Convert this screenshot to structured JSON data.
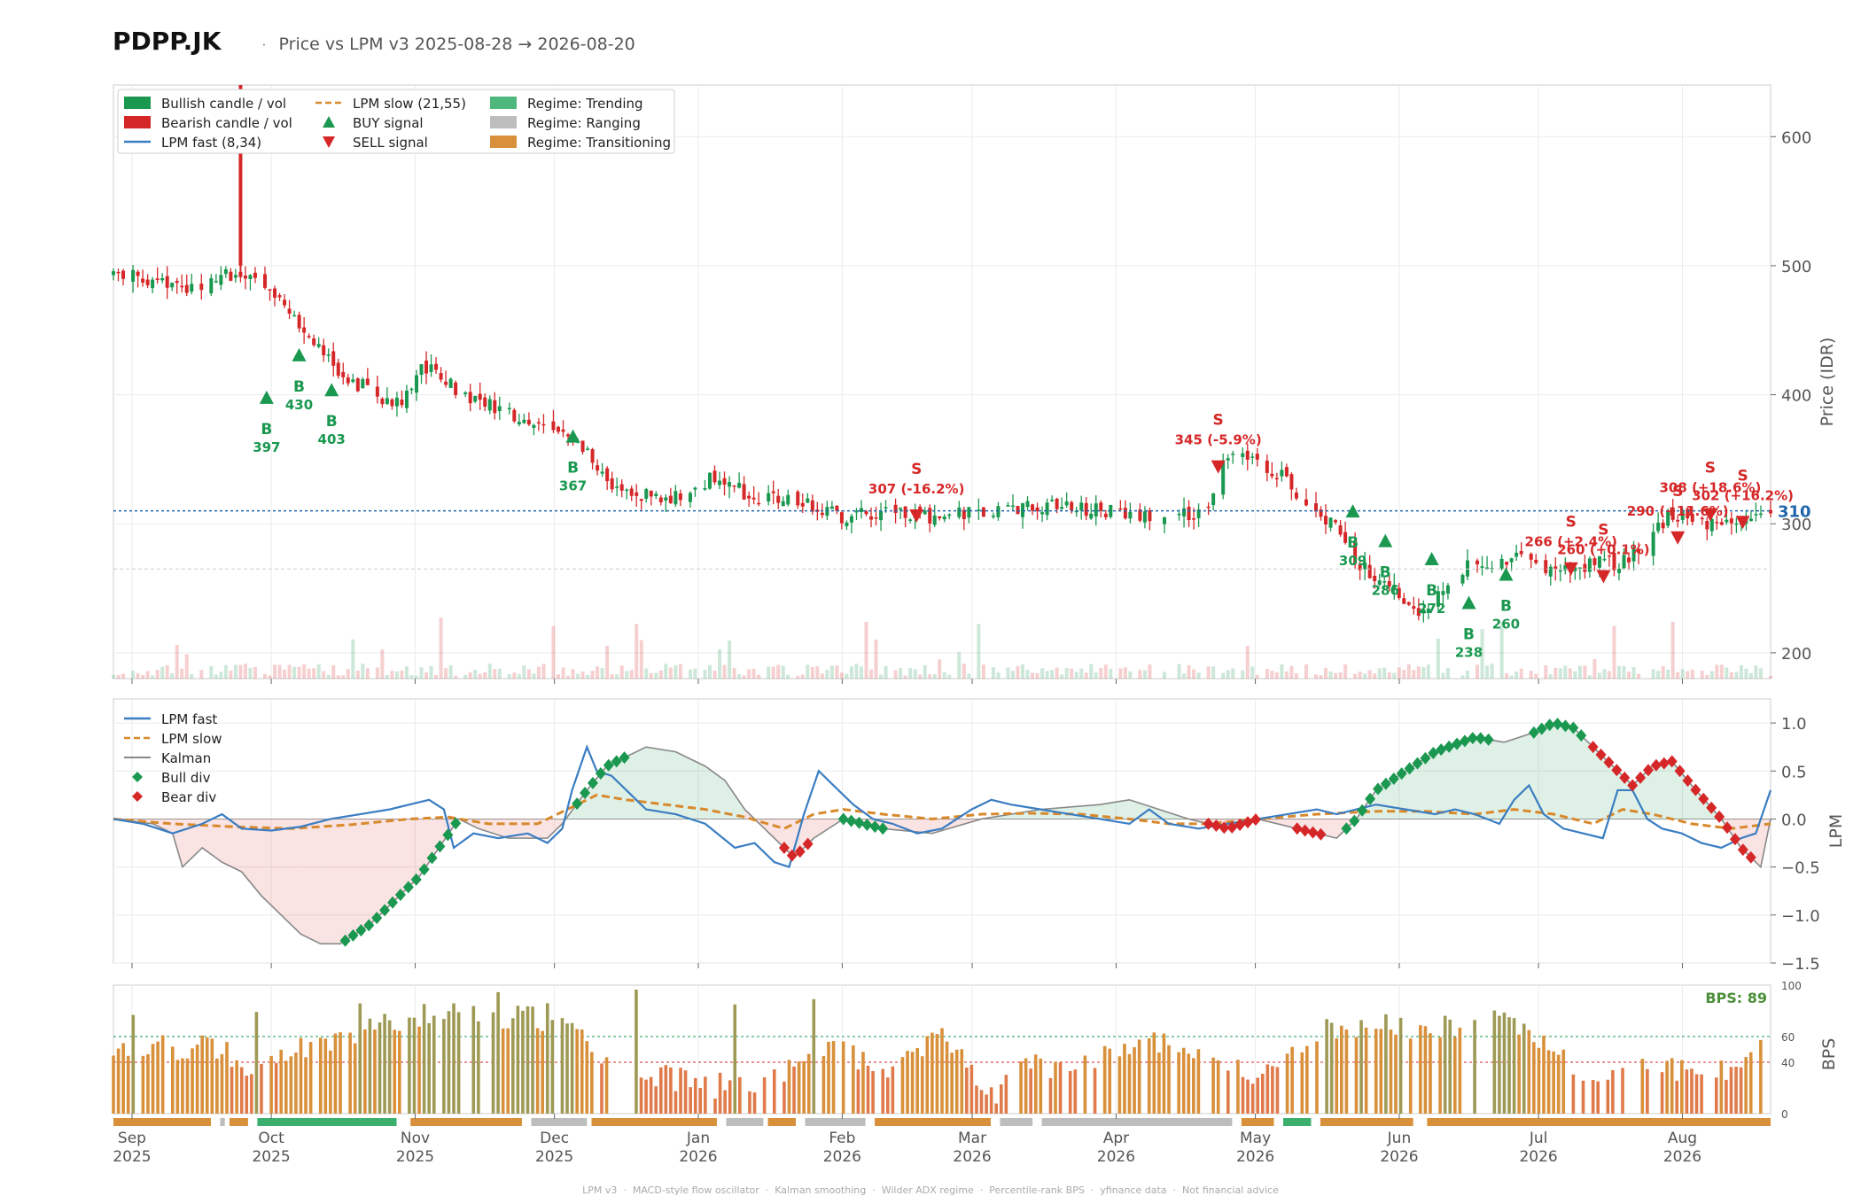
{
  "header": {
    "ticker": "PDPP.JK",
    "separator": "·",
    "subtitle": "Price vs LPM v3  2025-08-28 → 2026-08-20"
  },
  "footer": {
    "text": "LPM v3  ·  MACD-style flow oscillator  ·  Kalman smoothing  ·  Wilder ADX regime  ·  Percentile-rank BPS  ·  yfinance data  ·  Not financial advice"
  },
  "colors": {
    "bull": "#1a9850",
    "bear": "#d62728",
    "lpm_fast": "#3a7dc2",
    "lpm_slow": "#d8892c",
    "kalman": "#888888",
    "trending": "#3aaf6e",
    "ranging": "#bdbdbd",
    "transitioning": "#d8903b",
    "last_price": "#2166ac"
  },
  "chart_data": [
    {
      "panel": "price",
      "type": "candlestick",
      "ylabel": "Price (IDR)",
      "ylim": [
        180,
        640
      ],
      "yticks": [
        200,
        300,
        400,
        500,
        600
      ],
      "date_range": [
        "2025-08-28",
        "2026-08-20"
      ],
      "last_price": "310",
      "reference_price": 265,
      "legend": [
        "Bullish candle / vol",
        "Bearish candle / vol",
        "LPM fast (8,34)",
        "LPM slow (21,55)",
        "BUY signal",
        "SELL signal",
        "Regime: Trending",
        "Regime: Ranging",
        "Regime: Transitioning"
      ],
      "buy_signals": [
        {
          "date": "2025-09-30",
          "price": 397,
          "label": "B",
          "value": "397"
        },
        {
          "date": "2025-10-07",
          "price": 430,
          "label": "B",
          "value": "430"
        },
        {
          "date": "2025-10-14",
          "price": 403,
          "label": "B",
          "value": "403"
        },
        {
          "date": "2025-12-05",
          "price": 367,
          "label": "B",
          "value": "367"
        },
        {
          "date": "2026-05-22",
          "price": 309,
          "label": "B",
          "value": "309"
        },
        {
          "date": "2026-05-29",
          "price": 286,
          "label": "B",
          "value": "286"
        },
        {
          "date": "2026-06-08",
          "price": 272,
          "label": "B",
          "value": "272"
        },
        {
          "date": "2026-06-16",
          "price": 238,
          "label": "B",
          "value": "238"
        },
        {
          "date": "2026-06-24",
          "price": 260,
          "label": "B",
          "value": "260"
        }
      ],
      "sell_signals": [
        {
          "date": "2026-02-17",
          "price": 307,
          "label": "S",
          "value": "307 (-16.2%)"
        },
        {
          "date": "2026-04-23",
          "price": 345,
          "label": "S",
          "value": "345 (-5.9%)"
        },
        {
          "date": "2026-07-08",
          "price": 266,
          "label": "S",
          "value": "266 (+2.4%)"
        },
        {
          "date": "2026-07-15",
          "price": 260,
          "label": "S",
          "value": "260 (+0.1%)"
        },
        {
          "date": "2026-07-31",
          "price": 290,
          "label": "S",
          "value": "290 (+11.6%)"
        },
        {
          "date": "2026-08-07",
          "price": 308,
          "label": "S",
          "value": "308 (+18.6%)"
        },
        {
          "date": "2026-08-14",
          "price": 302,
          "label": "S",
          "value": "302 (+16.2%)"
        }
      ]
    },
    {
      "panel": "lpm",
      "type": "line",
      "ylabel": "LPM",
      "ylim": [
        -1.5,
        1.25
      ],
      "yticks": [
        -1.5,
        -1.0,
        -0.5,
        0.0,
        0.5,
        1.0
      ],
      "legend": [
        "LPM fast",
        "LPM slow",
        "Kalman",
        "Bull div",
        "Bear div"
      ],
      "series": [
        {
          "name": "LPM fast",
          "points": [
            [
              0,
              0
            ],
            [
              6,
              -0.05
            ],
            [
              12,
              -0.15
            ],
            [
              18,
              -0.05
            ],
            [
              22,
              0.05
            ],
            [
              26,
              -0.1
            ],
            [
              32,
              -0.12
            ],
            [
              38,
              -0.08
            ],
            [
              44,
              0
            ],
            [
              50,
              0.05
            ],
            [
              56,
              0.1
            ],
            [
              60,
              0.15
            ],
            [
              64,
              0.2
            ],
            [
              67,
              0.1
            ],
            [
              69,
              -0.3
            ],
            [
              73,
              -0.15
            ],
            [
              78,
              -0.2
            ],
            [
              84,
              -0.15
            ],
            [
              88,
              -0.25
            ],
            [
              91,
              -0.1
            ],
            [
              93,
              0.3
            ],
            [
              96,
              0.75
            ],
            [
              98,
              0.5
            ],
            [
              101,
              0.45
            ],
            [
              104,
              0.3
            ],
            [
              108,
              0.1
            ],
            [
              114,
              0.05
            ],
            [
              120,
              -0.05
            ],
            [
              126,
              -0.3
            ],
            [
              130,
              -0.25
            ],
            [
              134,
              -0.45
            ],
            [
              137,
              -0.5
            ],
            [
              140,
              0.05
            ],
            [
              143,
              0.5
            ],
            [
              146,
              0.35
            ],
            [
              150,
              0.15
            ],
            [
              154,
              0
            ],
            [
              158,
              -0.05
            ],
            [
              163,
              -0.15
            ],
            [
              168,
              -0.1
            ],
            [
              174,
              0.1
            ],
            [
              178,
              0.2
            ],
            [
              182,
              0.15
            ],
            [
              188,
              0.1
            ],
            [
              194,
              0.05
            ],
            [
              200,
              0
            ],
            [
              206,
              -0.05
            ],
            [
              210,
              0.1
            ],
            [
              214,
              -0.05
            ],
            [
              220,
              -0.1
            ],
            [
              226,
              -0.05
            ],
            [
              232,
              0
            ],
            [
              238,
              0.05
            ],
            [
              244,
              0.1
            ],
            [
              248,
              0.05
            ],
            [
              252,
              0.1
            ],
            [
              256,
              0.15
            ],
            [
              262,
              0.1
            ],
            [
              268,
              0.05
            ],
            [
              272,
              0.1
            ],
            [
              276,
              0.05
            ],
            [
              281,
              -0.05
            ],
            [
              284,
              0.2
            ],
            [
              287,
              0.35
            ],
            [
              290,
              0.05
            ],
            [
              294,
              -0.1
            ],
            [
              298,
              -0.15
            ],
            [
              302,
              -0.2
            ],
            [
              305,
              0.3
            ],
            [
              308,
              0.3
            ],
            [
              311,
              0
            ],
            [
              314,
              -0.1
            ],
            [
              318,
              -0.15
            ],
            [
              322,
              -0.25
            ],
            [
              326,
              -0.3
            ],
            [
              330,
              -0.2
            ],
            [
              333,
              -0.15
            ],
            [
              336,
              0.3
            ]
          ]
        },
        {
          "name": "LPM slow",
          "points": [
            [
              0,
              0
            ],
            [
              12,
              -0.05
            ],
            [
              24,
              -0.08
            ],
            [
              36,
              -0.1
            ],
            [
              48,
              -0.06
            ],
            [
              60,
              0
            ],
            [
              68,
              0.02
            ],
            [
              76,
              -0.05
            ],
            [
              86,
              -0.05
            ],
            [
              92,
              0.1
            ],
            [
              98,
              0.25
            ],
            [
              104,
              0.2
            ],
            [
              112,
              0.15
            ],
            [
              120,
              0.1
            ],
            [
              128,
              0.02
            ],
            [
              136,
              -0.1
            ],
            [
              142,
              0.05
            ],
            [
              148,
              0.1
            ],
            [
              156,
              0.05
            ],
            [
              166,
              0
            ],
            [
              176,
              0.05
            ],
            [
              186,
              0.06
            ],
            [
              196,
              0.05
            ],
            [
              206,
              0
            ],
            [
              214,
              -0.05
            ],
            [
              222,
              -0.05
            ],
            [
              232,
              0
            ],
            [
              244,
              0.05
            ],
            [
              256,
              0.08
            ],
            [
              266,
              0.08
            ],
            [
              276,
              0.05
            ],
            [
              284,
              0.1
            ],
            [
              292,
              0.05
            ],
            [
              300,
              -0.05
            ],
            [
              306,
              0.1
            ],
            [
              312,
              0.05
            ],
            [
              320,
              -0.05
            ],
            [
              328,
              -0.1
            ],
            [
              336,
              -0.05
            ]
          ]
        },
        {
          "name": "Kalman",
          "points": [
            [
              0,
              0
            ],
            [
              8,
              -0.05
            ],
            [
              12,
              -0.15
            ],
            [
              14,
              -0.5
            ],
            [
              18,
              -0.3
            ],
            [
              22,
              -0.45
            ],
            [
              26,
              -0.55
            ],
            [
              30,
              -0.8
            ],
            [
              34,
              -1.0
            ],
            [
              38,
              -1.2
            ],
            [
              42,
              -1.3
            ],
            [
              46,
              -1.3
            ],
            [
              52,
              -1.1
            ],
            [
              58,
              -0.8
            ],
            [
              62,
              -0.6
            ],
            [
              66,
              -0.3
            ],
            [
              70,
              0
            ],
            [
              74,
              -0.1
            ],
            [
              80,
              -0.2
            ],
            [
              88,
              -0.2
            ],
            [
              91,
              -0.05
            ],
            [
              96,
              0.3
            ],
            [
              100,
              0.55
            ],
            [
              108,
              0.75
            ],
            [
              114,
              0.7
            ],
            [
              120,
              0.55
            ],
            [
              124,
              0.4
            ],
            [
              128,
              0.1
            ],
            [
              134,
              -0.2
            ],
            [
              138,
              -0.4
            ],
            [
              142,
              -0.2
            ],
            [
              148,
              0
            ],
            [
              156,
              -0.1
            ],
            [
              166,
              -0.15
            ],
            [
              176,
              0
            ],
            [
              188,
              0.1
            ],
            [
              200,
              0.15
            ],
            [
              206,
              0.2
            ],
            [
              212,
              0.1
            ],
            [
              218,
              0
            ],
            [
              226,
              -0.1
            ],
            [
              232,
              0
            ],
            [
              240,
              -0.1
            ],
            [
              248,
              -0.2
            ],
            [
              252,
              0
            ],
            [
              256,
              0.3
            ],
            [
              262,
              0.5
            ],
            [
              268,
              0.7
            ],
            [
              276,
              0.85
            ],
            [
              282,
              0.8
            ],
            [
              288,
              0.9
            ],
            [
              292,
              1.0
            ],
            [
              296,
              0.95
            ],
            [
              300,
              0.75
            ],
            [
              304,
              0.55
            ],
            [
              308,
              0.35
            ],
            [
              312,
              0.55
            ],
            [
              316,
              0.6
            ],
            [
              320,
              0.35
            ],
            [
              326,
              0
            ],
            [
              330,
              -0.3
            ],
            [
              334,
              -0.5
            ],
            [
              336,
              0
            ]
          ]
        }
      ]
    },
    {
      "panel": "bps",
      "type": "bar",
      "ylabel": "BPS",
      "ylim": [
        0,
        100
      ],
      "yticks": [
        0,
        40,
        60,
        100
      ],
      "reference_lines": [
        40,
        60
      ],
      "last_value_label": "BPS: 89",
      "last_value": 89
    }
  ],
  "x_axis": {
    "ticks": [
      {
        "month": "Sep",
        "year": "2025"
      },
      {
        "month": "Oct",
        "year": "2025"
      },
      {
        "month": "Nov",
        "year": "2025"
      },
      {
        "month": "Dec",
        "year": "2025"
      },
      {
        "month": "Jan",
        "year": "2026"
      },
      {
        "month": "Feb",
        "year": "2026"
      },
      {
        "month": "Mar",
        "year": "2026"
      },
      {
        "month": "Apr",
        "year": "2026"
      },
      {
        "month": "May",
        "year": "2026"
      },
      {
        "month": "Jun",
        "year": "2026"
      },
      {
        "month": "Jul",
        "year": "2026"
      },
      {
        "month": "Aug",
        "year": "2026"
      }
    ]
  },
  "regime_strip": [
    {
      "start": "2025-08-28",
      "end": "2025-09-18",
      "regime": "transitioning"
    },
    {
      "start": "2025-09-20",
      "end": "2025-09-21",
      "regime": "ranging"
    },
    {
      "start": "2025-09-22",
      "end": "2025-09-26",
      "regime": "transitioning"
    },
    {
      "start": "2025-09-28",
      "end": "2025-10-28",
      "regime": "trending"
    },
    {
      "start": "2025-10-31",
      "end": "2025-11-24",
      "regime": "transitioning"
    },
    {
      "start": "2025-11-26",
      "end": "2025-12-08",
      "regime": "ranging"
    },
    {
      "start": "2025-12-09",
      "end": "2026-01-05",
      "regime": "transitioning"
    },
    {
      "start": "2026-01-07",
      "end": "2026-01-15",
      "regime": "ranging"
    },
    {
      "start": "2026-01-16",
      "end": "2026-01-22",
      "regime": "transitioning"
    },
    {
      "start": "2026-01-24",
      "end": "2026-02-06",
      "regime": "ranging"
    },
    {
      "start": "2026-02-08",
      "end": "2026-03-05",
      "regime": "transitioning"
    },
    {
      "start": "2026-03-07",
      "end": "2026-03-14",
      "regime": "ranging"
    },
    {
      "start": "2026-03-16",
      "end": "2026-04-26",
      "regime": "ranging"
    },
    {
      "start": "2026-04-28",
      "end": "2026-05-05",
      "regime": "transitioning"
    },
    {
      "start": "2026-05-07",
      "end": "2026-05-13",
      "regime": "trending"
    },
    {
      "start": "2026-05-15",
      "end": "2026-06-04",
      "regime": "transitioning"
    },
    {
      "start": "2026-06-07",
      "end": "2026-08-20",
      "regime": "transitioning"
    }
  ]
}
